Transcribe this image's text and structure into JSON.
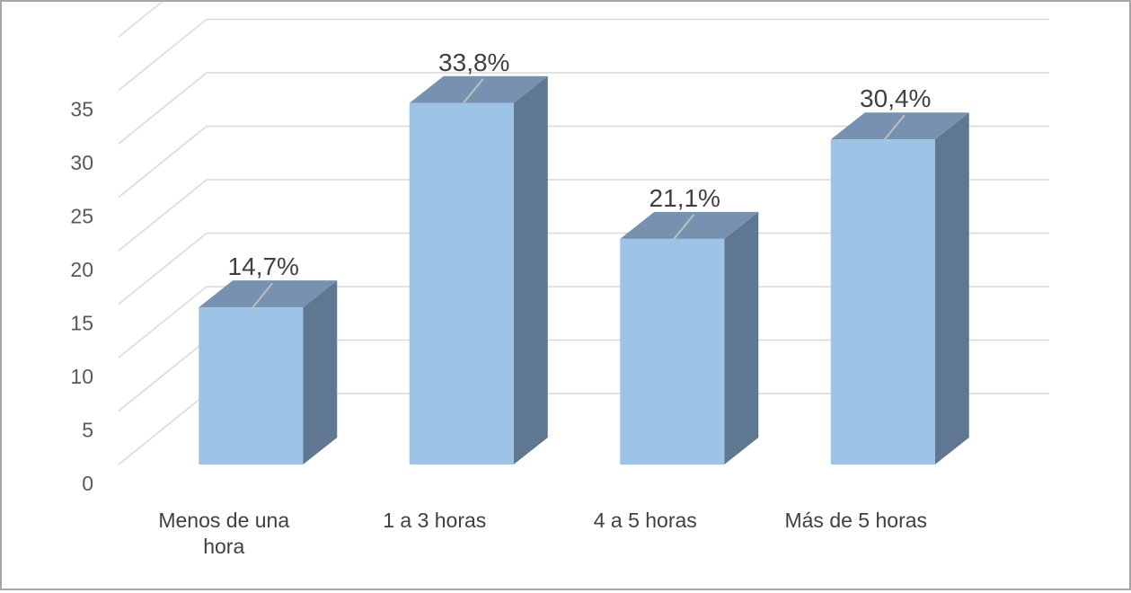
{
  "chart_data": {
    "type": "bar",
    "three_d": true,
    "categories": [
      [
        "Menos de una",
        "hora"
      ],
      [
        "1 a 3 horas"
      ],
      [
        "4 a 5 horas"
      ],
      [
        "Más de 5 horas"
      ]
    ],
    "values": [
      14.7,
      33.8,
      21.1,
      30.4
    ],
    "data_labels": [
      "14,7%",
      "33,8%",
      "21,1%",
      "30,4%"
    ],
    "yticks": [
      "0",
      "5",
      "10",
      "15",
      "20",
      "25",
      "30",
      "35"
    ],
    "ylim": [
      0,
      40
    ],
    "grid": true,
    "legend": "none",
    "colors": {
      "front": "#9dc3e6",
      "side": "#5f7791",
      "top": "#7692b0",
      "grid": "#d9d9d9",
      "leader": "#bfbfbf"
    }
  }
}
